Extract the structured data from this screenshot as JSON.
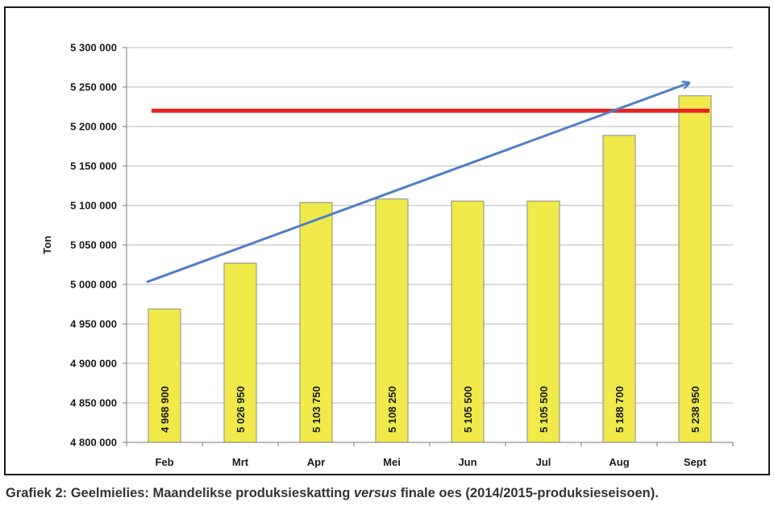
{
  "chart_data": {
    "type": "bar",
    "title": "",
    "xlabel": "",
    "ylabel": "Ton",
    "categories": [
      "Feb",
      "Mrt",
      "Apr",
      "Mei",
      "Jun",
      "Jul",
      "Aug",
      "Sept"
    ],
    "series": [
      {
        "values": [
          4968900,
          5026950,
          5103750,
          5108250,
          5105500,
          5105500,
          5188700,
          5238950
        ],
        "data_labels": [
          "4 968 900",
          "5 026 950",
          "5 103 750",
          "5 108 250",
          "5 105 500",
          "5 105 500",
          "5 188 700",
          "5 238 950"
        ],
        "color": "#f0ea4a"
      }
    ],
    "ylim": [
      4800000,
      5300000
    ],
    "yticks": [
      "4 800 000",
      "4 850 000",
      "4 900 000",
      "4 950 000",
      "5 000 000",
      "5 050 000",
      "5 100 000",
      "5 150 000",
      "5 200 000",
      "5 250 000",
      "5 300 000"
    ],
    "grid": true,
    "legend": "none",
    "reference_line": {
      "value": 5220000,
      "from_category": "Feb",
      "to_category": "Sept",
      "color": "#e8221c"
    },
    "trend_arrow": {
      "from": [
        "Feb",
        5003000
      ],
      "to": [
        "Sept",
        5255000
      ],
      "color": "#4f7ec4"
    }
  },
  "caption": {
    "prefix": "Grafiek 2: Geelmielies: Maandelikse produksieskatting ",
    "emphasis": "versus",
    "suffix": " finale oes (2014/2015-produksieseisoen)."
  }
}
